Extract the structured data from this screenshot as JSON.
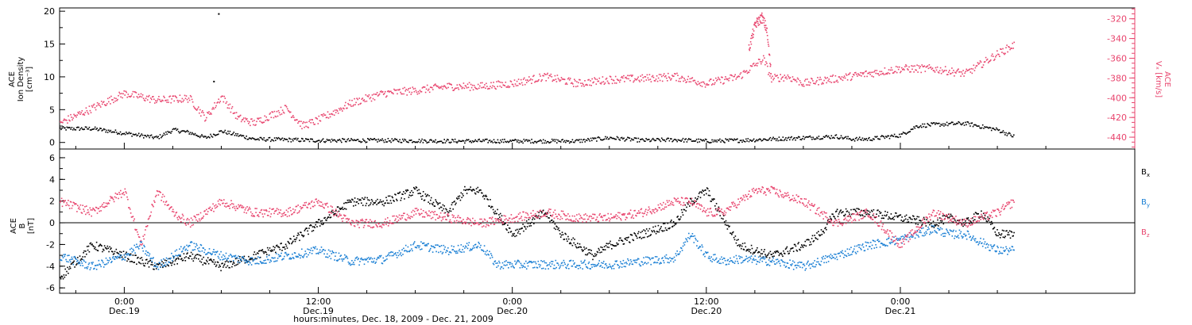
{
  "chart_data": [
    {
      "type": "scatter",
      "panel": "top",
      "left_axis": {
        "label_lines": [
          "ACE",
          "Ion Density",
          "[cm⁻³]"
        ],
        "ylim": [
          -1,
          20.5
        ],
        "ticks": [
          "0",
          "5",
          "10",
          "15",
          "20"
        ]
      },
      "right_axis": {
        "label_lines": [
          "ACE",
          "Vₓ [km/s]"
        ],
        "ylim": [
          -452,
          -309
        ],
        "ticks": [
          "-320",
          "-340",
          "-360",
          "-380",
          "-400",
          "-420",
          "-440"
        ],
        "color": "#e8456e"
      },
      "x_hours_range": [
        -4,
        62.5
      ],
      "series": [
        {
          "axis": "left",
          "color": "#000000",
          "x": [
            -4,
            -2,
            0,
            2,
            3,
            4,
            5,
            6,
            8,
            12,
            16,
            20,
            24,
            28,
            30,
            32,
            34,
            36,
            38,
            40,
            42,
            44,
            45,
            46,
            48,
            49,
            50,
            52,
            54,
            55
          ],
          "y": [
            2.2,
            2.2,
            1.5,
            0.8,
            2.0,
            1.6,
            0.8,
            1.8,
            0.6,
            0.4,
            0.4,
            0.3,
            0.3,
            0.3,
            0.8,
            0.4,
            0.5,
            0.3,
            0.4,
            0.6,
            0.8,
            1.0,
            0.6,
            0.6,
            1.2,
            2.6,
            2.8,
            3.0,
            2.0,
            1.0
          ],
          "outliers": [
            [
              5.8,
              19.7
            ],
            [
              5.5,
              9.4
            ]
          ]
        },
        {
          "axis": "right",
          "color": "#e8456e",
          "x": [
            -4,
            -2,
            0,
            2,
            4,
            5,
            6,
            7,
            8,
            10,
            11,
            12,
            14,
            16,
            18,
            20,
            22,
            24,
            26,
            28,
            30,
            32,
            34,
            36,
            38,
            39.5,
            40,
            41,
            42,
            43,
            44,
            46,
            48,
            50,
            52,
            54,
            55
          ],
          "y": [
            -425,
            -410,
            -395,
            -402,
            -400,
            -420,
            -398,
            -420,
            -425,
            -410,
            -428,
            -422,
            -405,
            -395,
            -392,
            -388,
            -388,
            -385,
            -378,
            -385,
            -381,
            -380,
            -378,
            -385,
            -378,
            -360,
            -380,
            -378,
            -385,
            -382,
            -380,
            -375,
            -370,
            -370,
            -375,
            -355,
            -346
          ],
          "spike": {
            "x": [
              38.6,
              39.0,
              39.4,
              39.7,
              40.0
            ],
            "y": [
              -350,
              -325,
              -318,
              -330,
              -380
            ]
          }
        }
      ]
    },
    {
      "type": "scatter",
      "panel": "bottom",
      "left_axis": {
        "label_lines": [
          "ACE",
          "B",
          "[nT]"
        ],
        "ylim": [
          -6.5,
          6.8
        ],
        "ticks": [
          "-6",
          "-4",
          "-2",
          "0",
          "2",
          "4",
          "6"
        ]
      },
      "x_hours_range": [
        -4,
        62.5
      ],
      "x_ticks": [
        {
          "hours": 0,
          "time": "0:00",
          "date": "Dec.19"
        },
        {
          "hours": 12,
          "time": "12:00",
          "date": "Dec.19"
        },
        {
          "hours": 24,
          "time": "0:00",
          "date": "Dec.20"
        },
        {
          "hours": 36,
          "time": "12:00",
          "date": "Dec.20"
        },
        {
          "hours": 48,
          "time": "0:00",
          "date": "Dec.21"
        }
      ],
      "xlabel": "hours:minutes, Dec. 18, 2009 - Dec. 21, 2009",
      "series": [
        {
          "name": "Bx",
          "color": "#000000",
          "x": [
            -4,
            -2,
            0,
            2,
            4,
            6,
            8,
            10,
            12,
            14,
            16,
            18,
            20,
            21,
            22,
            23,
            24,
            25,
            26,
            27,
            28,
            29,
            30,
            32,
            34,
            35,
            36,
            38,
            40,
            42,
            43,
            44,
            46,
            48,
            50,
            51,
            52,
            53,
            54,
            55
          ],
          "y": [
            -5,
            -2,
            -3,
            -4,
            -3,
            -4,
            -3,
            -2,
            0,
            2,
            2,
            3,
            1,
            3,
            3,
            1,
            -1,
            0,
            1,
            -1,
            -2,
            -3,
            -2,
            -1,
            0,
            2,
            3,
            -2,
            -3,
            -2,
            -1,
            1,
            1,
            0.5,
            0,
            0.5,
            0,
            1,
            -1,
            -1
          ]
        },
        {
          "name": "By",
          "color": "#1a7fd4",
          "x": [
            -4,
            -2,
            0,
            1,
            2,
            3,
            4,
            6,
            8,
            10,
            12,
            14,
            16,
            18,
            20,
            22,
            23,
            24,
            26,
            28,
            30,
            32,
            34,
            35,
            36,
            37,
            38,
            40,
            42,
            44,
            46,
            48,
            50,
            51,
            52,
            54,
            55
          ],
          "y": [
            -3,
            -4,
            -3,
            -2,
            -4,
            -3,
            -2,
            -3,
            -3.5,
            -3,
            -2.5,
            -3.5,
            -3.3,
            -2,
            -2.5,
            -2,
            -3.8,
            -3.8,
            -3.8,
            -3.8,
            -3.8,
            -3.5,
            -3.2,
            -1,
            -3,
            -3.5,
            -3.3,
            -3.5,
            -4,
            -3,
            -2,
            -1.5,
            -0.5,
            -1,
            -1,
            -2.5,
            -2.5
          ]
        },
        {
          "name": "Bz",
          "color": "#e8456e",
          "x": [
            -4,
            -2,
            0,
            1,
            2,
            3,
            4,
            6,
            8,
            10,
            12,
            14,
            16,
            18,
            20,
            22,
            24,
            26,
            28,
            30,
            32,
            34,
            35,
            36,
            37,
            38,
            39,
            40,
            42,
            44,
            46,
            48,
            50,
            52,
            54,
            55
          ],
          "y": [
            2,
            1,
            3,
            -2,
            3,
            1,
            0,
            2,
            1,
            1,
            2,
            0,
            0,
            1,
            0.5,
            0,
            0.5,
            1,
            0.5,
            0.5,
            1,
            2,
            2,
            1,
            1,
            2,
            3,
            3,
            2,
            0,
            1,
            -2,
            1,
            0,
            1,
            2
          ]
        }
      ]
    }
  ]
}
